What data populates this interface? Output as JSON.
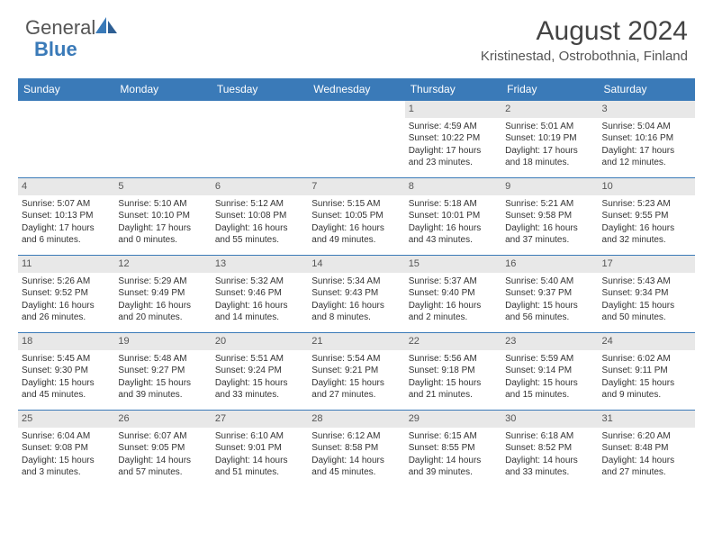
{
  "logo": {
    "word1": "General",
    "word2": "Blue"
  },
  "title": "August 2024",
  "location": "Kristinestad, Ostrobothnia, Finland",
  "colors": {
    "header_bg": "#3a7ab8",
    "header_text": "#ffffff",
    "daynum_bg": "#e8e8e8",
    "daynum_text": "#555555",
    "body_text": "#333333",
    "title_text": "#444444",
    "logo_gray": "#555555",
    "logo_blue": "#3a7ab8",
    "row_border": "#3a7ab8",
    "page_bg": "#ffffff"
  },
  "typography": {
    "title_fontsize": 30,
    "location_fontsize": 15,
    "logo_fontsize": 22,
    "weekday_fontsize": 12,
    "daynum_fontsize": 11,
    "body_fontsize": 10
  },
  "weekdays": [
    "Sunday",
    "Monday",
    "Tuesday",
    "Wednesday",
    "Thursday",
    "Friday",
    "Saturday"
  ],
  "weeks": [
    [
      {
        "num": "",
        "lines": []
      },
      {
        "num": "",
        "lines": []
      },
      {
        "num": "",
        "lines": []
      },
      {
        "num": "",
        "lines": []
      },
      {
        "num": "1",
        "lines": [
          "Sunrise: 4:59 AM",
          "Sunset: 10:22 PM",
          "Daylight: 17 hours and 23 minutes."
        ]
      },
      {
        "num": "2",
        "lines": [
          "Sunrise: 5:01 AM",
          "Sunset: 10:19 PM",
          "Daylight: 17 hours and 18 minutes."
        ]
      },
      {
        "num": "3",
        "lines": [
          "Sunrise: 5:04 AM",
          "Sunset: 10:16 PM",
          "Daylight: 17 hours and 12 minutes."
        ]
      }
    ],
    [
      {
        "num": "4",
        "lines": [
          "Sunrise: 5:07 AM",
          "Sunset: 10:13 PM",
          "Daylight: 17 hours and 6 minutes."
        ]
      },
      {
        "num": "5",
        "lines": [
          "Sunrise: 5:10 AM",
          "Sunset: 10:10 PM",
          "Daylight: 17 hours and 0 minutes."
        ]
      },
      {
        "num": "6",
        "lines": [
          "Sunrise: 5:12 AM",
          "Sunset: 10:08 PM",
          "Daylight: 16 hours and 55 minutes."
        ]
      },
      {
        "num": "7",
        "lines": [
          "Sunrise: 5:15 AM",
          "Sunset: 10:05 PM",
          "Daylight: 16 hours and 49 minutes."
        ]
      },
      {
        "num": "8",
        "lines": [
          "Sunrise: 5:18 AM",
          "Sunset: 10:01 PM",
          "Daylight: 16 hours and 43 minutes."
        ]
      },
      {
        "num": "9",
        "lines": [
          "Sunrise: 5:21 AM",
          "Sunset: 9:58 PM",
          "Daylight: 16 hours and 37 minutes."
        ]
      },
      {
        "num": "10",
        "lines": [
          "Sunrise: 5:23 AM",
          "Sunset: 9:55 PM",
          "Daylight: 16 hours and 32 minutes."
        ]
      }
    ],
    [
      {
        "num": "11",
        "lines": [
          "Sunrise: 5:26 AM",
          "Sunset: 9:52 PM",
          "Daylight: 16 hours and 26 minutes."
        ]
      },
      {
        "num": "12",
        "lines": [
          "Sunrise: 5:29 AM",
          "Sunset: 9:49 PM",
          "Daylight: 16 hours and 20 minutes."
        ]
      },
      {
        "num": "13",
        "lines": [
          "Sunrise: 5:32 AM",
          "Sunset: 9:46 PM",
          "Daylight: 16 hours and 14 minutes."
        ]
      },
      {
        "num": "14",
        "lines": [
          "Sunrise: 5:34 AM",
          "Sunset: 9:43 PM",
          "Daylight: 16 hours and 8 minutes."
        ]
      },
      {
        "num": "15",
        "lines": [
          "Sunrise: 5:37 AM",
          "Sunset: 9:40 PM",
          "Daylight: 16 hours and 2 minutes."
        ]
      },
      {
        "num": "16",
        "lines": [
          "Sunrise: 5:40 AM",
          "Sunset: 9:37 PM",
          "Daylight: 15 hours and 56 minutes."
        ]
      },
      {
        "num": "17",
        "lines": [
          "Sunrise: 5:43 AM",
          "Sunset: 9:34 PM",
          "Daylight: 15 hours and 50 minutes."
        ]
      }
    ],
    [
      {
        "num": "18",
        "lines": [
          "Sunrise: 5:45 AM",
          "Sunset: 9:30 PM",
          "Daylight: 15 hours and 45 minutes."
        ]
      },
      {
        "num": "19",
        "lines": [
          "Sunrise: 5:48 AM",
          "Sunset: 9:27 PM",
          "Daylight: 15 hours and 39 minutes."
        ]
      },
      {
        "num": "20",
        "lines": [
          "Sunrise: 5:51 AM",
          "Sunset: 9:24 PM",
          "Daylight: 15 hours and 33 minutes."
        ]
      },
      {
        "num": "21",
        "lines": [
          "Sunrise: 5:54 AM",
          "Sunset: 9:21 PM",
          "Daylight: 15 hours and 27 minutes."
        ]
      },
      {
        "num": "22",
        "lines": [
          "Sunrise: 5:56 AM",
          "Sunset: 9:18 PM",
          "Daylight: 15 hours and 21 minutes."
        ]
      },
      {
        "num": "23",
        "lines": [
          "Sunrise: 5:59 AM",
          "Sunset: 9:14 PM",
          "Daylight: 15 hours and 15 minutes."
        ]
      },
      {
        "num": "24",
        "lines": [
          "Sunrise: 6:02 AM",
          "Sunset: 9:11 PM",
          "Daylight: 15 hours and 9 minutes."
        ]
      }
    ],
    [
      {
        "num": "25",
        "lines": [
          "Sunrise: 6:04 AM",
          "Sunset: 9:08 PM",
          "Daylight: 15 hours and 3 minutes."
        ]
      },
      {
        "num": "26",
        "lines": [
          "Sunrise: 6:07 AM",
          "Sunset: 9:05 PM",
          "Daylight: 14 hours and 57 minutes."
        ]
      },
      {
        "num": "27",
        "lines": [
          "Sunrise: 6:10 AM",
          "Sunset: 9:01 PM",
          "Daylight: 14 hours and 51 minutes."
        ]
      },
      {
        "num": "28",
        "lines": [
          "Sunrise: 6:12 AM",
          "Sunset: 8:58 PM",
          "Daylight: 14 hours and 45 minutes."
        ]
      },
      {
        "num": "29",
        "lines": [
          "Sunrise: 6:15 AM",
          "Sunset: 8:55 PM",
          "Daylight: 14 hours and 39 minutes."
        ]
      },
      {
        "num": "30",
        "lines": [
          "Sunrise: 6:18 AM",
          "Sunset: 8:52 PM",
          "Daylight: 14 hours and 33 minutes."
        ]
      },
      {
        "num": "31",
        "lines": [
          "Sunrise: 6:20 AM",
          "Sunset: 8:48 PM",
          "Daylight: 14 hours and 27 minutes."
        ]
      }
    ]
  ]
}
